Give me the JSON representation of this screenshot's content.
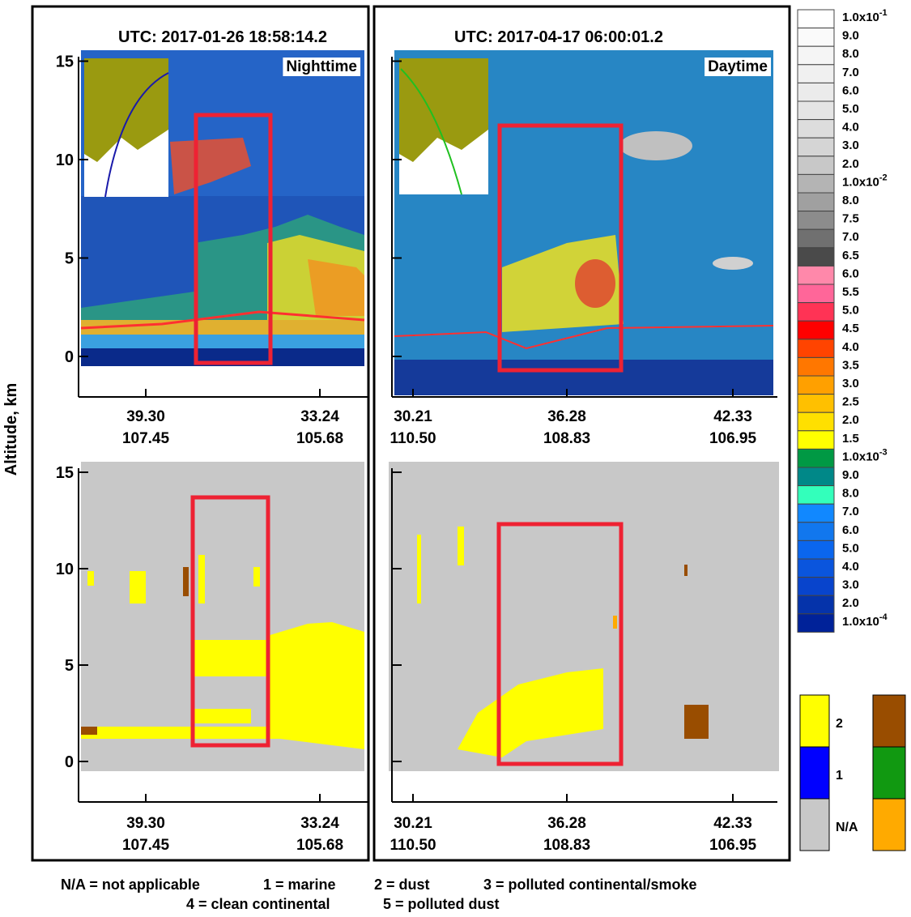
{
  "y_axis_label": "Altitude, km",
  "yticks": [
    0,
    5,
    10,
    15
  ],
  "columns": [
    {
      "utc": "UTC:  2017-01-26 18:58:14.2",
      "tag": "Nighttime",
      "xticks": [
        {
          "lat": "39.30",
          "lon": "107.45"
        },
        {
          "lat": "33.24",
          "lon": "105.68"
        }
      ]
    },
    {
      "utc": "UTC:  2017-04-17 06:00:01.2",
      "tag": "Daytime",
      "xticks": [
        {
          "lat": "30.21",
          "lon": "110.50"
        },
        {
          "lat": "36.28",
          "lon": "108.83"
        },
        {
          "lat": "42.33",
          "lon": "106.95"
        }
      ]
    }
  ],
  "colorbar": {
    "labels": [
      {
        "text": "1.0x10",
        "sup": "-1"
      },
      "9.0",
      "8.0",
      "7.0",
      "6.0",
      "5.0",
      "4.0",
      "3.0",
      "2.0",
      {
        "text": "1.0x10",
        "sup": "-2"
      },
      "8.0",
      "7.5",
      "7.0",
      "6.5",
      "6.0",
      "5.5",
      "5.0",
      "4.5",
      "4.0",
      "3.5",
      "3.0",
      "2.5",
      "2.0",
      "1.5",
      {
        "text": "1.0x10",
        "sup": "-3"
      },
      "9.0",
      "8.0",
      "7.0",
      "6.0",
      "5.0",
      "4.0",
      "3.0",
      "2.0",
      {
        "text": "1.0x10",
        "sup": "-4"
      }
    ],
    "colors": [
      "#ffffff",
      "#fafafa",
      "#f5f5f5",
      "#f0f0f0",
      "#ebebeb",
      "#e5e5e5",
      "#dddddd",
      "#d5d5d5",
      "#c8c8c8",
      "#b4b4b4",
      "#a0a0a0",
      "#8c8c8c",
      "#707070",
      "#4a4a4a",
      "#ff88aa",
      "#ff6699",
      "#ff3355",
      "#ff0000",
      "#ff4400",
      "#ff7700",
      "#ffa000",
      "#ffc000",
      "#ffe000",
      "#ffff00",
      "#009944",
      "#008888",
      "#33ffbb",
      "#1188ff",
      "#1177ee",
      "#0a66ee",
      "#0a55dd",
      "#0844cc",
      "#0533aa",
      "#002299"
    ]
  },
  "legend": {
    "left": [
      {
        "label": "2",
        "color": "#ffff00"
      },
      {
        "label": "1",
        "color": "#0000ff"
      },
      {
        "label": "N/A",
        "color": "#c8c8c8"
      }
    ],
    "right_colors": [
      "#994d00",
      "#119911",
      "#ffaa00"
    ]
  },
  "footer": [
    [
      "N/A = not applicable",
      "1 = marine",
      "2 = dust",
      "3 = polluted continental/smoke"
    ],
    [
      "4 = clean continental",
      "5 = polluted dust"
    ]
  ]
}
